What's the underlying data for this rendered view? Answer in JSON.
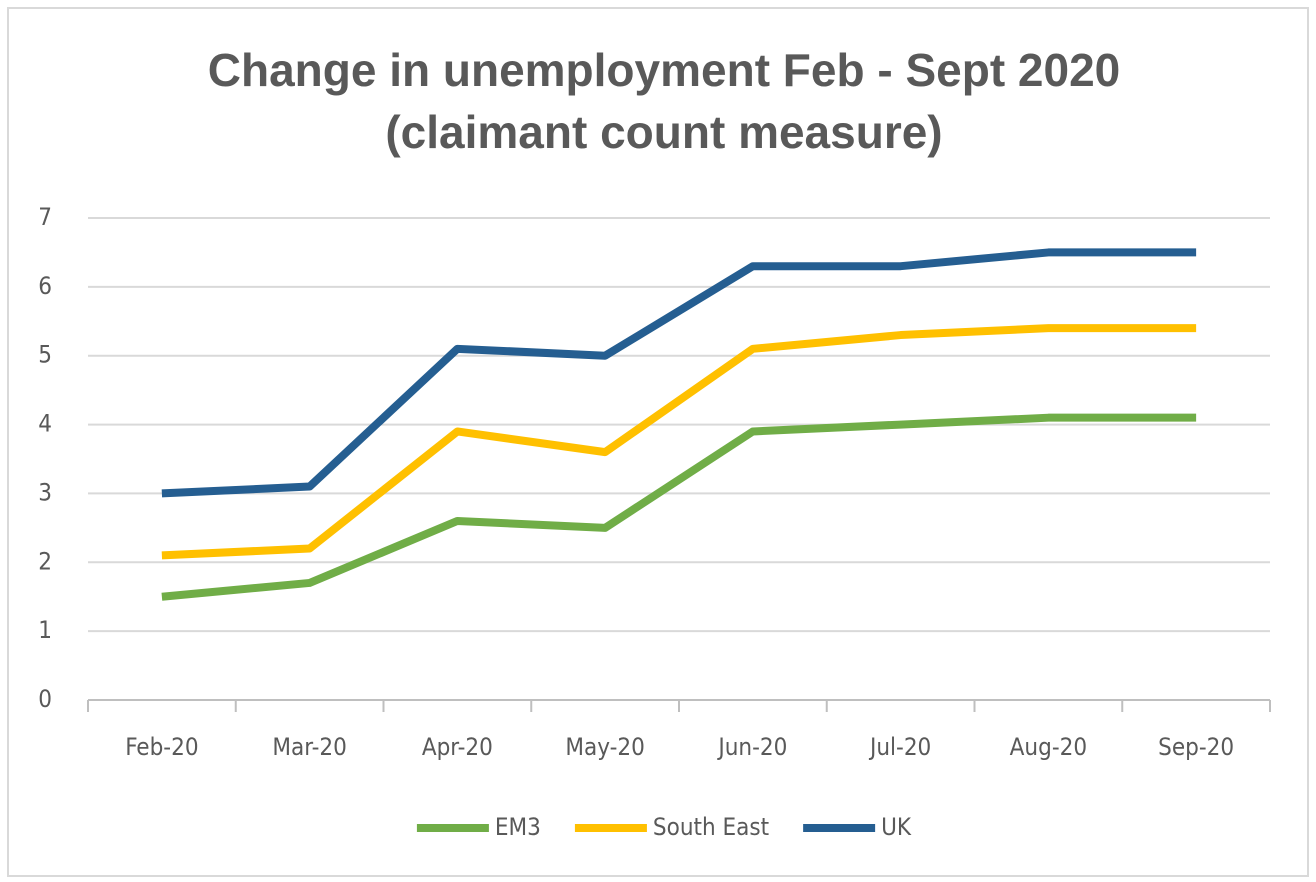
{
  "chart_data": {
    "type": "line",
    "title": [
      "Change in unemployment Feb - Sept 2020",
      "(claimant count measure)"
    ],
    "categories": [
      "Feb-20",
      "Mar-20",
      "Apr-20",
      "May-20",
      "Jun-20",
      "Jul-20",
      "Aug-20",
      "Sep-20"
    ],
    "series": [
      {
        "name": "EM3",
        "color": "#70ad47",
        "values": [
          1.5,
          1.7,
          2.6,
          2.5,
          3.9,
          4.0,
          4.1,
          4.1
        ]
      },
      {
        "name": "South East",
        "color": "#ffc000",
        "values": [
          2.1,
          2.2,
          3.9,
          3.6,
          5.1,
          5.3,
          5.4,
          5.4
        ]
      },
      {
        "name": "UK",
        "color": "#255e91",
        "values": [
          3.0,
          3.1,
          5.1,
          5.0,
          6.3,
          6.3,
          6.5,
          6.5
        ]
      }
    ],
    "ylim": [
      0,
      7
    ],
    "yticks": [
      0,
      1,
      2,
      3,
      4,
      5,
      6,
      7
    ],
    "grid": true,
    "legend": "bottom"
  }
}
